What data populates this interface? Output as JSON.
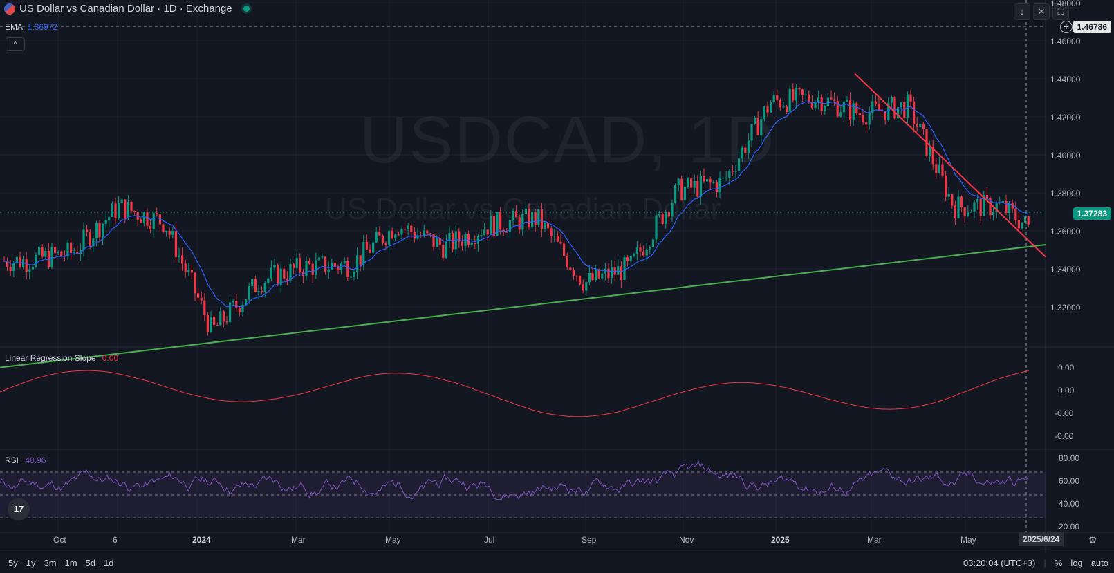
{
  "header": {
    "title": "US Dollar vs Canadian Dollar · 1D · Exchange",
    "icons": [
      "flag-icon",
      "live-status-icon"
    ]
  },
  "ema": {
    "label": "EMA",
    "value": "1.36972"
  },
  "collapse_glyph": "^",
  "toolbar": {
    "download": "↓",
    "collapse": "✕",
    "fullscreen": "⛶"
  },
  "add_glyph": "+",
  "watermark": {
    "symbol": "USDCAD, 1D",
    "name": "US Dollar vs Canadian Dollar"
  },
  "price_axis": [
    "1.48000",
    "1.46000",
    "1.44000",
    "1.42000",
    "1.40000",
    "1.38000",
    "1.36000",
    "1.34000",
    "1.32000"
  ],
  "last_price": "1.37283",
  "crosshair_price": "1.46786",
  "lrs": {
    "label": "Linear Regression Slope",
    "value": "0.00",
    "axis": [
      "0.00",
      "0.00",
      "-0.00",
      "-0.00"
    ]
  },
  "rsi": {
    "label": "RSI",
    "value": "48.96",
    "axis": [
      "80.00",
      "60.00",
      "40.00",
      "20.00"
    ]
  },
  "time_axis": [
    "Oct",
    "6",
    "2024",
    "Mar",
    "May",
    "Jul",
    "Sep",
    "Nov",
    "2025",
    "Mar",
    "May"
  ],
  "date_tag": "2025/6/24",
  "tv_logo": "17",
  "footer": {
    "ranges": [
      "5y",
      "1y",
      "3m",
      "1m",
      "5d",
      "1d"
    ],
    "clock": "03:20:04 (UTC+3)",
    "percent": "%",
    "log": "log",
    "auto": "auto"
  },
  "colors": {
    "up": "#089981",
    "down": "#f23645",
    "ema": "#2962ff",
    "trend_up": "#4caf50",
    "trend_down": "#f23645",
    "lrs": "#f23645",
    "rsi": "#7e57c2",
    "bg": "#131722"
  },
  "chart_data": {
    "type": "line",
    "title": "USDCAD, 1D",
    "ylim": [
      1.31,
      1.48
    ],
    "x": [
      "2023-09-01",
      "2023-10-01",
      "2023-11-01",
      "2023-12-01",
      "2024-01-01",
      "2024-02-01",
      "2024-03-01",
      "2024-04-01",
      "2024-05-01",
      "2024-06-01",
      "2024-07-01",
      "2024-08-01",
      "2024-09-01",
      "2024-10-01",
      "2024-11-01",
      "2024-12-01",
      "2025-01-01",
      "2025-02-01",
      "2025-03-01",
      "2025-04-01",
      "2025-05-01",
      "2025-06-01",
      "2025-06-24"
    ],
    "series": [
      {
        "name": "USDCAD",
        "values": [
          1.359,
          1.363,
          1.386,
          1.378,
          1.324,
          1.349,
          1.356,
          1.357,
          1.377,
          1.366,
          1.377,
          1.38,
          1.348,
          1.356,
          1.394,
          1.398,
          1.438,
          1.44,
          1.432,
          1.436,
          1.386,
          1.386,
          1.373
        ]
      },
      {
        "name": "EMA",
        "values": [
          1.358,
          1.361,
          1.38,
          1.376,
          1.329,
          1.348,
          1.355,
          1.356,
          1.373,
          1.367,
          1.375,
          1.378,
          1.352,
          1.358,
          1.39,
          1.397,
          1.433,
          1.438,
          1.433,
          1.432,
          1.39,
          1.387,
          1.3697
        ]
      }
    ],
    "trendlines": [
      {
        "name": "support",
        "from": [
          "2023-08-15",
          1.306
        ],
        "to": [
          "2025-06-30",
          1.367
        ]
      },
      {
        "name": "resistance",
        "from": [
          "2025-02-25",
          1.452
        ],
        "to": [
          "2025-06-30",
          1.361
        ]
      }
    ]
  }
}
